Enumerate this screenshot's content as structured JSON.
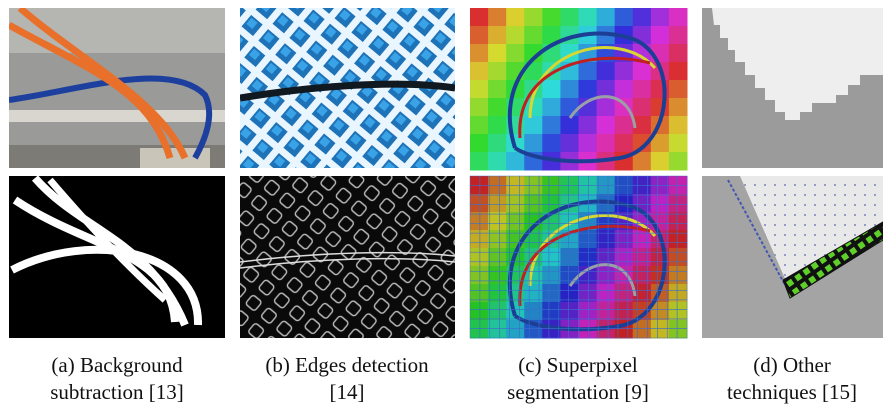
{
  "panels": [
    {
      "caption": [
        "(a) Background",
        "subtraction [13]"
      ]
    },
    {
      "caption": [
        "(b) Edges detection",
        "[14]"
      ]
    },
    {
      "caption": [
        "(c) Superpixel",
        "segmentation [9]"
      ]
    },
    {
      "caption": [
        "(d) Other",
        "techniques [15]"
      ]
    }
  ]
}
